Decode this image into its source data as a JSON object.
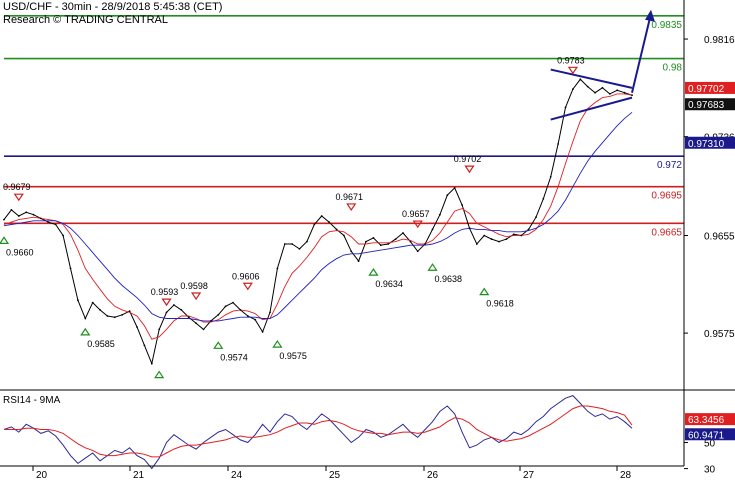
{
  "header": {
    "line1": "USD/CHF - 30min - 28/9/2018 5:45:38 (CET)",
    "line2": "Research © TRADING CENTRAL"
  },
  "chart_data": [
    {
      "type": "line",
      "title": "USD/CHF - 30min - 28/9/2018 5:45:38 (CET)",
      "x_ticks": [
        "20",
        "21",
        "24",
        "25",
        "26",
        "27",
        "28"
      ],
      "y_ticks": [
        0.9816,
        0.9736,
        0.9655,
        0.9575
      ],
      "ylim": [
        0.953,
        0.9848
      ],
      "grid": false,
      "series": [
        {
          "key": "price",
          "color": "#000000",
          "values": [
            0.9668,
            0.9676,
            0.9671,
            0.9674,
            0.9672,
            0.9669,
            0.9666,
            0.9664,
            0.9655,
            0.9628,
            0.9602,
            0.9587,
            0.96,
            0.9594,
            0.9589,
            0.9588,
            0.959,
            0.9593,
            0.958,
            0.9565,
            0.955,
            0.9578,
            0.9592,
            0.9598,
            0.9594,
            0.9588,
            0.9583,
            0.9578,
            0.9585,
            0.959,
            0.9597,
            0.96,
            0.9594,
            0.9589,
            0.9586,
            0.9576,
            0.9592,
            0.9628,
            0.9648,
            0.9648,
            0.9644,
            0.965,
            0.9664,
            0.9671,
            0.9666,
            0.966,
            0.9655,
            0.9642,
            0.9634,
            0.965,
            0.9653,
            0.9647,
            0.9648,
            0.9652,
            0.9657,
            0.965,
            0.9642,
            0.9648,
            0.966,
            0.9672,
            0.9688,
            0.9694,
            0.968,
            0.9661,
            0.9648,
            0.9655,
            0.9652,
            0.965,
            0.9652,
            0.9656,
            0.9655,
            0.966,
            0.967,
            0.9685,
            0.9703,
            0.973,
            0.976,
            0.9775,
            0.9783,
            0.9777,
            0.9772,
            0.9776,
            0.9771,
            0.9774,
            0.9772,
            0.977
          ]
        },
        {
          "key": "ma_fast",
          "color": "#e02020",
          "values": [
            0.9664,
            0.9666,
            0.9668,
            0.9669,
            0.967,
            0.9669,
            0.9668,
            0.9667,
            0.9664,
            0.9656,
            0.9643,
            0.9628,
            0.9619,
            0.9611,
            0.9603,
            0.9597,
            0.9594,
            0.9592,
            0.9589,
            0.9581,
            0.957,
            0.9572,
            0.9578,
            0.9585,
            0.9589,
            0.9589,
            0.9587,
            0.9584,
            0.9584,
            0.9586,
            0.959,
            0.9593,
            0.9594,
            0.9593,
            0.9591,
            0.9586,
            0.9587,
            0.9599,
            0.9613,
            0.9624,
            0.963,
            0.9637,
            0.9645,
            0.9654,
            0.9658,
            0.9659,
            0.9658,
            0.9654,
            0.9648,
            0.9648,
            0.9649,
            0.9649,
            0.9649,
            0.965,
            0.9652,
            0.9651,
            0.9648,
            0.9648,
            0.9651,
            0.9657,
            0.9666,
            0.9675,
            0.9677,
            0.9673,
            0.9665,
            0.9662,
            0.9659,
            0.9656,
            0.9654,
            0.9655,
            0.9655,
            0.9656,
            0.966,
            0.9668,
            0.9679,
            0.9695,
            0.9714,
            0.9732,
            0.9749,
            0.9759,
            0.9764,
            0.9768,
            0.9769,
            0.9771,
            0.9771,
            0.977
          ]
        },
        {
          "key": "ma_slow",
          "color": "#2020c0",
          "values": [
            0.9663,
            0.9664,
            0.9665,
            0.9666,
            0.9667,
            0.9667,
            0.9667,
            0.9667,
            0.9665,
            0.9661,
            0.9655,
            0.9648,
            0.9641,
            0.9634,
            0.9627,
            0.962,
            0.9614,
            0.9609,
            0.9604,
            0.9598,
            0.9591,
            0.9588,
            0.9587,
            0.9587,
            0.9587,
            0.9587,
            0.9586,
            0.9585,
            0.9585,
            0.9585,
            0.9586,
            0.9587,
            0.9588,
            0.9588,
            0.9588,
            0.9587,
            0.9587,
            0.959,
            0.9596,
            0.9602,
            0.9608,
            0.9614,
            0.962,
            0.9627,
            0.9632,
            0.9636,
            0.9639,
            0.964,
            0.964,
            0.9641,
            0.9642,
            0.9643,
            0.9644,
            0.9645,
            0.9646,
            0.9647,
            0.9647,
            0.9647,
            0.9648,
            0.965,
            0.9653,
            0.9657,
            0.966,
            0.9661,
            0.966,
            0.966,
            0.9659,
            0.9659,
            0.9658,
            0.9658,
            0.9658,
            0.9659,
            0.9661,
            0.9664,
            0.9669,
            0.9675,
            0.9684,
            0.9695,
            0.9706,
            0.9716,
            0.9724,
            0.9731,
            0.9738,
            0.9745,
            0.9751,
            0.9756
          ]
        }
      ],
      "levels": [
        {
          "value": 0.9835,
          "label": "0.9835",
          "color": "#1f8f1f"
        },
        {
          "value": 0.98,
          "label": "0.98",
          "color": "#1f8f1f"
        },
        {
          "value": 0.972,
          "label": "0.972",
          "color": "#1a1a8c"
        },
        {
          "value": 0.9695,
          "label": "0.9695",
          "color": "#cc1f1f"
        },
        {
          "value": 0.9665,
          "label": "0.9665",
          "color": "#cc1f1f"
        }
      ],
      "price_tags": [
        {
          "value": 0.97702,
          "label": "0.97702",
          "bg": "#e02020",
          "fg": "#ffffff"
        },
        {
          "value": 0.97683,
          "label": "0.97683",
          "bg": "#111111",
          "fg": "#ffffff"
        },
        {
          "value": 0.9731,
          "label": "0.97310",
          "bg": "#1a1a8c",
          "fg": "#ffffff"
        }
      ],
      "annotations": [
        {
          "kind": "low",
          "i": 0,
          "value": 0.966,
          "label": "0.9660"
        },
        {
          "kind": "high",
          "i": 2,
          "value": 0.9679,
          "label": "0.9679"
        },
        {
          "kind": "low",
          "i": 11,
          "value": 0.9585,
          "label": "0.9585"
        },
        {
          "kind": "high",
          "i": 22,
          "value": 0.9593,
          "label": "0.9593"
        },
        {
          "kind": "low",
          "i": 21,
          "value": 0.955,
          "label": ""
        },
        {
          "kind": "high",
          "i": 26,
          "value": 0.9598,
          "label": "0.9598"
        },
        {
          "kind": "low",
          "i": 29,
          "value": 0.9574,
          "label": "0.9574"
        },
        {
          "kind": "high",
          "i": 33,
          "value": 0.9606,
          "label": "0.9606"
        },
        {
          "kind": "low",
          "i": 37,
          "value": 0.9575,
          "label": "0.9575"
        },
        {
          "kind": "high",
          "i": 47,
          "value": 0.9671,
          "label": "0.9671"
        },
        {
          "kind": "low",
          "i": 50,
          "value": 0.9634,
          "label": "0.9634"
        },
        {
          "kind": "high",
          "i": 56,
          "value": 0.9657,
          "label": "0.9657"
        },
        {
          "kind": "low",
          "i": 58,
          "value": 0.9638,
          "label": "0.9638"
        },
        {
          "kind": "high",
          "i": 63,
          "value": 0.9702,
          "label": "0.9702"
        },
        {
          "kind": "low",
          "i": 65,
          "value": 0.9618,
          "label": "0.9618"
        },
        {
          "kind": "high",
          "i": 77,
          "value": 0.9783,
          "label": "0.9783"
        }
      ]
    },
    {
      "type": "line",
      "title": "RSI14 - 9MA",
      "ylim": [
        32,
        88
      ],
      "y_ticks": [
        50,
        30
      ],
      "series": [
        {
          "key": "rsi14",
          "color": "#2a2a9a",
          "values": [
            60,
            62,
            58,
            64,
            61,
            57,
            59,
            55,
            48,
            40,
            34,
            38,
            42,
            36,
            40,
            44,
            42,
            46,
            40,
            37,
            30,
            38,
            50,
            56,
            52,
            48,
            45,
            50,
            54,
            58,
            60,
            56,
            52,
            50,
            56,
            64,
            58,
            66,
            72,
            70,
            64,
            60,
            66,
            72,
            68,
            62,
            56,
            50,
            54,
            60,
            58,
            54,
            56,
            60,
            64,
            58,
            54,
            60,
            66,
            74,
            78,
            72,
            58,
            46,
            48,
            52,
            54,
            50,
            53,
            58,
            56,
            60,
            66,
            70,
            76,
            80,
            84,
            86,
            80,
            74,
            70,
            72,
            68,
            70,
            66,
            60.9471
          ]
        },
        {
          "key": "ma9",
          "color": "#e02020",
          "values": [
            60,
            60,
            60,
            61,
            61,
            60,
            60,
            59,
            57,
            53,
            49,
            46,
            44,
            41,
            40,
            40,
            41,
            42,
            42,
            41,
            39,
            39,
            42,
            45,
            47,
            48,
            48,
            49,
            50,
            51,
            52,
            54,
            55,
            54,
            54,
            55,
            56,
            58,
            61,
            63,
            65,
            65,
            64,
            66,
            67,
            66,
            64,
            61,
            59,
            58,
            57,
            57,
            56,
            57,
            58,
            58,
            57,
            58,
            60,
            62,
            66,
            69,
            68,
            65,
            60,
            57,
            54,
            52,
            51,
            52,
            53,
            55,
            58,
            61,
            64,
            68,
            72,
            76,
            78,
            78,
            77,
            76,
            74,
            73,
            71,
            63.3456
          ]
        }
      ],
      "price_tags": [
        {
          "value": 63.3456,
          "label": "63.3456",
          "bg": "#e02020",
          "fg": "#ffffff"
        },
        {
          "value": 60.9471,
          "label": "60.9471",
          "bg": "#1a1a8c",
          "fg": "#ffffff"
        }
      ]
    }
  ]
}
